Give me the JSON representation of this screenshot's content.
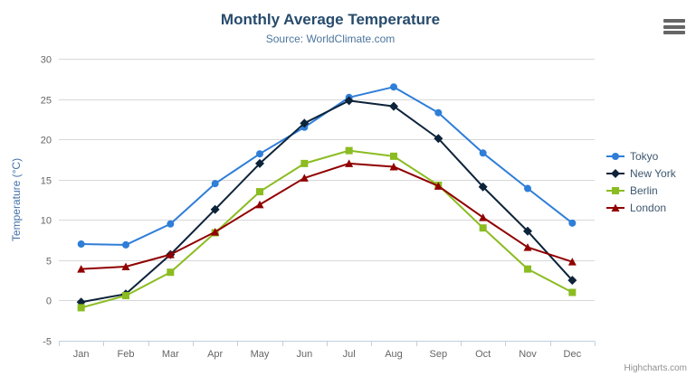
{
  "chart_data": {
    "type": "line",
    "title": "Monthly Average Temperature",
    "subtitle": "Source: WorldClimate.com",
    "categories": [
      "Jan",
      "Feb",
      "Mar",
      "Apr",
      "May",
      "Jun",
      "Jul",
      "Aug",
      "Sep",
      "Oct",
      "Nov",
      "Dec"
    ],
    "xlabel": "",
    "ylabel": "Temperature (°C)",
    "ylim": [
      -5,
      30
    ],
    "ytick_step": 5,
    "grid": true,
    "legend_position": "right",
    "series": [
      {
        "name": "Tokyo",
        "color": "#2f7ed8",
        "marker": "circle",
        "values": [
          7.0,
          6.9,
          9.5,
          14.5,
          18.2,
          21.5,
          25.2,
          26.5,
          23.3,
          18.3,
          13.9,
          9.6
        ]
      },
      {
        "name": "New York",
        "color": "#0d233a",
        "marker": "diamond",
        "values": [
          -0.2,
          0.8,
          5.7,
          11.3,
          17.0,
          22.0,
          24.8,
          24.1,
          20.1,
          14.1,
          8.6,
          2.5
        ]
      },
      {
        "name": "Berlin",
        "color": "#8bbc21",
        "marker": "square",
        "values": [
          -0.9,
          0.6,
          3.5,
          8.4,
          13.5,
          17.0,
          18.6,
          17.9,
          14.3,
          9.0,
          3.9,
          1.0
        ]
      },
      {
        "name": "London",
        "color": "#910000",
        "marker": "triangle",
        "values": [
          3.9,
          4.2,
          5.7,
          8.5,
          11.9,
          15.2,
          17.0,
          16.6,
          14.2,
          10.3,
          6.6,
          4.8
        ]
      }
    ]
  },
  "credits": {
    "label": "Highcharts.com"
  },
  "colors": {
    "title": "#274b6d",
    "subtitle": "#4d759e",
    "axis_labels": "#666666",
    "axis_title": "#4572a7",
    "grid_line": "#d8d8d8",
    "axis_line": "#c0d0e0",
    "legend_text": "#3e576f",
    "credits": "#909090",
    "menu_icon": "#666666",
    "background": "#ffffff"
  }
}
